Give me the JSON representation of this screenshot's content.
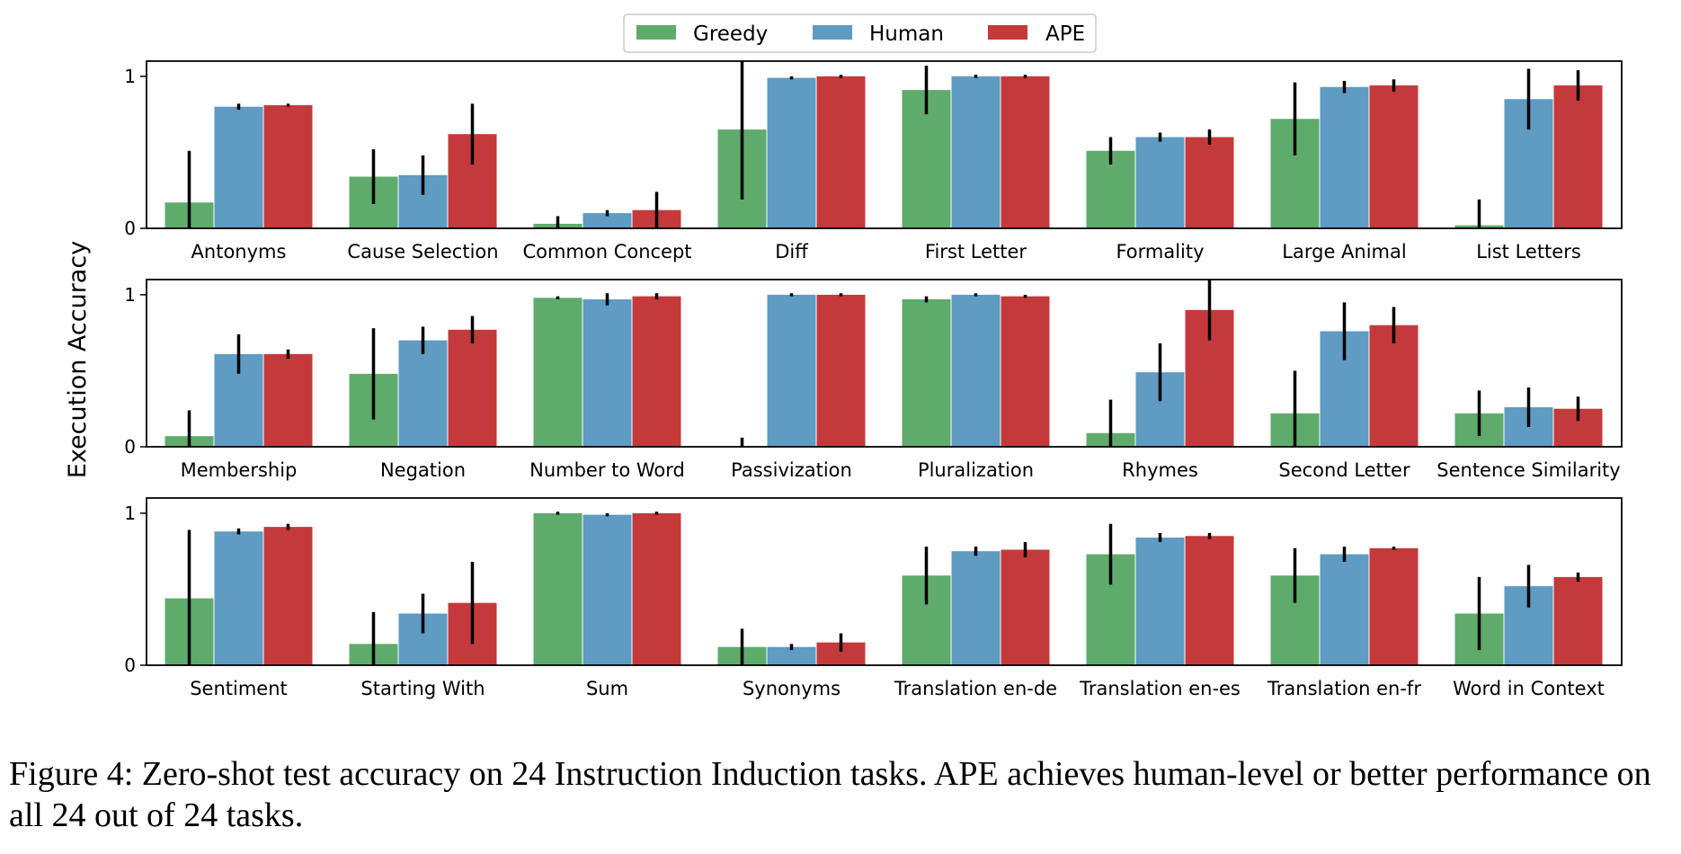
{
  "chart_data": {
    "type": "bar",
    "ylabel": "Execution Accuracy",
    "legend": {
      "placement": "top-center",
      "entries": [
        "Greedy",
        "Human",
        "APE"
      ]
    },
    "series_colors": [
      "#5fab6b",
      "#5f9bc3",
      "#c43a3a"
    ],
    "ylim": [
      0,
      1.1
    ],
    "yticks": [
      "0",
      "1"
    ],
    "grid": false,
    "panels": [
      {
        "categories": [
          "Antonyms",
          "Cause Selection",
          "Common Concept",
          "Diff",
          "First Letter",
          "Formality",
          "Large Animal",
          "List Letters"
        ],
        "series": [
          {
            "name": "Greedy",
            "values": [
              0.17,
              0.34,
              0.03,
              0.65,
              0.91,
              0.51,
              0.72,
              0.02
            ],
            "errors": [
              0.34,
              0.18,
              0.05,
              0.46,
              0.16,
              0.09,
              0.24,
              0.17
            ]
          },
          {
            "name": "Human",
            "values": [
              0.8,
              0.35,
              0.1,
              0.99,
              1.0,
              0.6,
              0.93,
              0.85
            ],
            "errors": [
              0.02,
              0.13,
              0.02,
              0.01,
              0.01,
              0.03,
              0.04,
              0.2
            ]
          },
          {
            "name": "APE",
            "values": [
              0.81,
              0.62,
              0.12,
              1.0,
              1.0,
              0.6,
              0.94,
              0.94
            ],
            "errors": [
              0.01,
              0.2,
              0.12,
              0.01,
              0.01,
              0.05,
              0.04,
              0.1
            ]
          }
        ]
      },
      {
        "categories": [
          "Membership",
          "Negation",
          "Number to Word",
          "Passivization",
          "Pluralization",
          "Rhymes",
          "Second Letter",
          "Sentence Similarity"
        ],
        "series": [
          {
            "name": "Greedy",
            "values": [
              0.07,
              0.48,
              0.98,
              0.0,
              0.97,
              0.09,
              0.22,
              0.22
            ],
            "errors": [
              0.17,
              0.3,
              0.01,
              0.06,
              0.02,
              0.22,
              0.28,
              0.15
            ]
          },
          {
            "name": "Human",
            "values": [
              0.61,
              0.7,
              0.97,
              1.0,
              1.0,
              0.49,
              0.76,
              0.26
            ],
            "errors": [
              0.13,
              0.09,
              0.04,
              0.01,
              0.01,
              0.19,
              0.19,
              0.13
            ]
          },
          {
            "name": "APE",
            "values": [
              0.61,
              0.77,
              0.99,
              1.0,
              0.99,
              0.9,
              0.8,
              0.25
            ],
            "errors": [
              0.03,
              0.09,
              0.02,
              0.01,
              0.01,
              0.2,
              0.12,
              0.08
            ]
          }
        ]
      },
      {
        "categories": [
          "Sentiment",
          "Starting With",
          "Sum",
          "Synonyms",
          "Translation en-de",
          "Translation en-es",
          "Translation en-fr",
          "Word in Context"
        ],
        "series": [
          {
            "name": "Greedy",
            "values": [
              0.44,
              0.14,
              1.0,
              0.12,
              0.59,
              0.73,
              0.59,
              0.34
            ],
            "errors": [
              0.45,
              0.21,
              0.01,
              0.12,
              0.19,
              0.2,
              0.18,
              0.24
            ]
          },
          {
            "name": "Human",
            "values": [
              0.88,
              0.34,
              0.99,
              0.12,
              0.75,
              0.84,
              0.73,
              0.52
            ],
            "errors": [
              0.02,
              0.13,
              0.01,
              0.02,
              0.03,
              0.03,
              0.05,
              0.14
            ]
          },
          {
            "name": "APE",
            "values": [
              0.91,
              0.41,
              1.0,
              0.15,
              0.76,
              0.85,
              0.77,
              0.58
            ],
            "errors": [
              0.02,
              0.27,
              0.01,
              0.06,
              0.05,
              0.02,
              0.01,
              0.03
            ]
          }
        ]
      }
    ]
  },
  "caption": "Figure 4: Zero-shot test accuracy on 24 Instruction Induction tasks. APE achieves human-level or better performance on all 24 out of 24 tasks."
}
